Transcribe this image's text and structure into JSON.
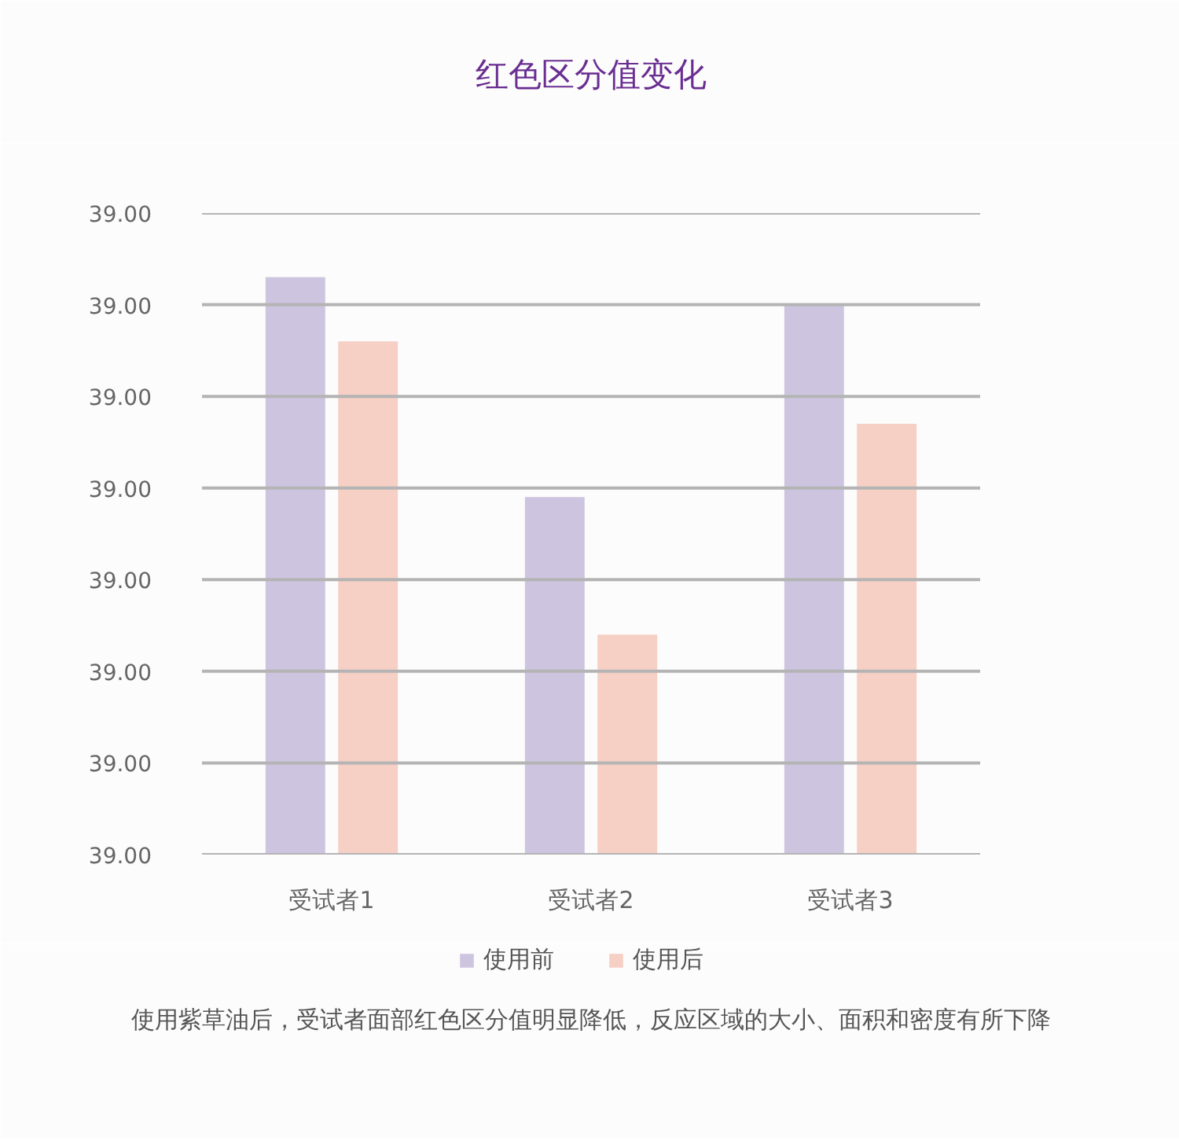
{
  "chart_data": {
    "type": "bar",
    "title": "红色区分值变化",
    "categories": [
      "受试者1",
      "受试者2",
      "受试者3"
    ],
    "series": [
      {
        "name": "使用前",
        "color": "#cdc5df",
        "values": [
          39.0033,
          39.0009,
          39.003
        ]
      },
      {
        "name": "使用后",
        "color": "#f6cfc5",
        "values": [
          39.0026,
          38.9994,
          39.0017
        ]
      }
    ],
    "ylim": [
      38.997,
      39.004
    ],
    "yticks": [
      {
        "value": 38.997,
        "label": "39.00"
      },
      {
        "value": 38.998,
        "label": "39.00"
      },
      {
        "value": 38.999,
        "label": "39.00"
      },
      {
        "value": 39.0,
        "label": "39.00"
      },
      {
        "value": 39.001,
        "label": "39.00"
      },
      {
        "value": 39.002,
        "label": "39.00"
      },
      {
        "value": 39.003,
        "label": "39.00"
      },
      {
        "value": 39.004,
        "label": "39.00"
      }
    ],
    "grid": "y",
    "legend": "bottom",
    "annotations": [
      "使用紫草油后，受试者面部红色区分值明显降低，反应区域的大小、面积和密度有所下降"
    ]
  }
}
